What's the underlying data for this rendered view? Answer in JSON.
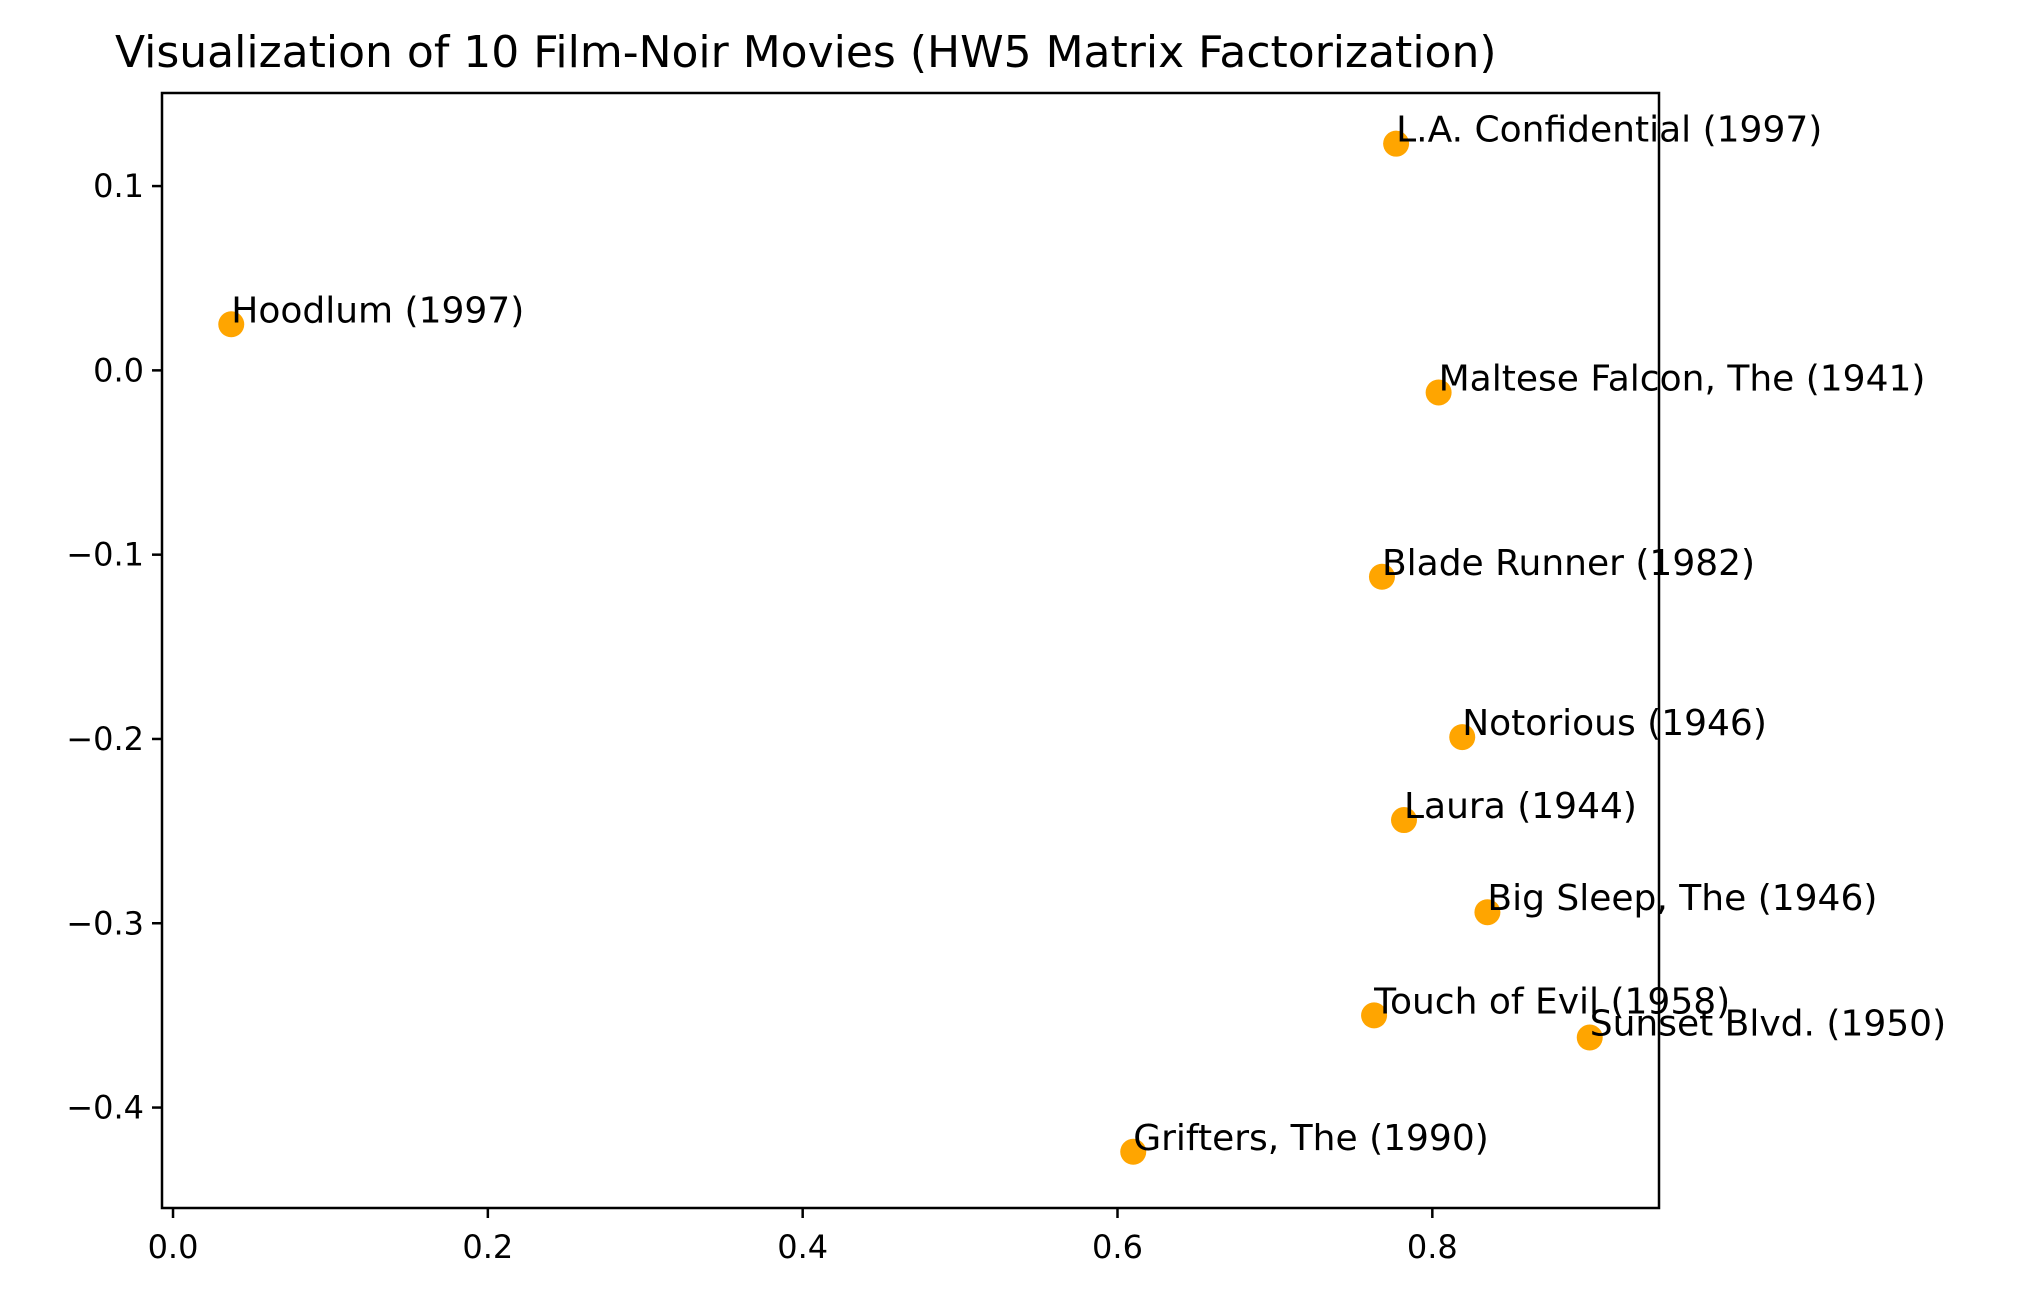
{
  "chart_data": {
    "type": "scatter",
    "title": "Visualization of 10 Film-Noir Movies (HW5 Matrix Factorization)",
    "xlabel": "",
    "ylabel": "",
    "xlim": [
      -0.007,
      0.944
    ],
    "ylim": [
      -0.4545,
      0.1505
    ],
    "xticks": [
      0.0,
      0.2,
      0.4,
      0.6,
      0.8
    ],
    "xtick_labels": [
      "0.0",
      "0.2",
      "0.4",
      "0.6",
      "0.8"
    ],
    "yticks": [
      0.1,
      0.0,
      -0.1,
      -0.2,
      -0.3,
      -0.4
    ],
    "ytick_labels": [
      "0.1",
      "0.0",
      "−0.1",
      "−0.2",
      "−0.3",
      "−0.4"
    ],
    "grid": false,
    "marker_color": "#FFA500",
    "points": [
      {
        "label": "L.A. Confidential (1997)",
        "x": 0.777,
        "y": 0.123
      },
      {
        "label": "Hoodlum (1997)",
        "x": 0.037,
        "y": 0.025
      },
      {
        "label": "Maltese Falcon, The (1941)",
        "x": 0.804,
        "y": -0.012
      },
      {
        "label": "Blade Runner (1982)",
        "x": 0.768,
        "y": -0.112
      },
      {
        "label": "Notorious (1946)",
        "x": 0.819,
        "y": -0.199
      },
      {
        "label": "Laura (1944)",
        "x": 0.782,
        "y": -0.244
      },
      {
        "label": "Big Sleep, The (1946)",
        "x": 0.835,
        "y": -0.294
      },
      {
        "label": "Touch of Evil (1958)",
        "x": 0.763,
        "y": -0.35
      },
      {
        "label": "Sunset Blvd. (1950)",
        "x": 0.9,
        "y": -0.362
      },
      {
        "label": "Grifters, The (1990)",
        "x": 0.61,
        "y": -0.424
      }
    ]
  }
}
